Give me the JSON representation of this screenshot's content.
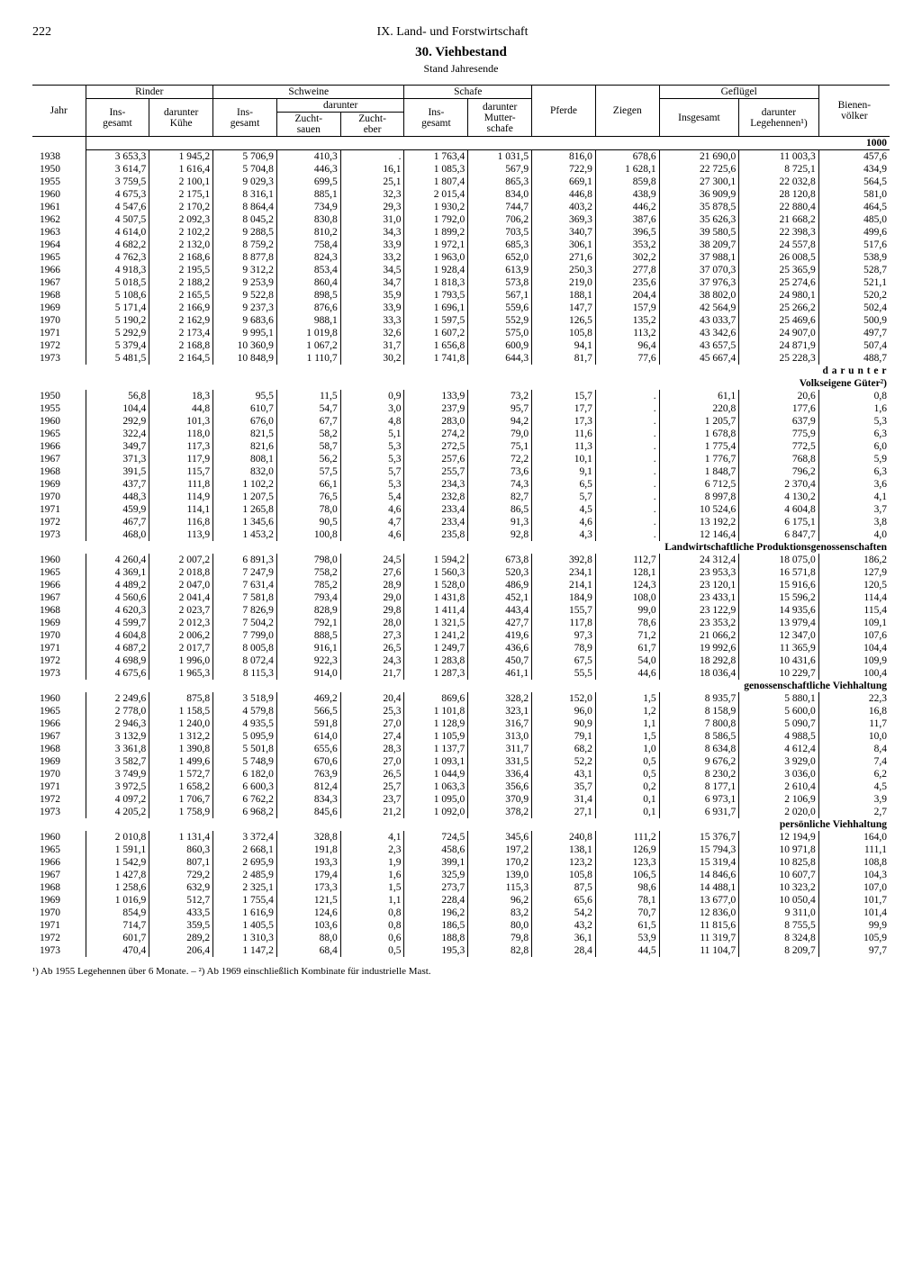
{
  "page_number": "222",
  "chapter": "IX. Land- und Forstwirtschaft",
  "title": "30. Viehbestand",
  "subtitle": "Stand Jahresende",
  "unit_label": "1000",
  "columns": {
    "rinder": "Rinder",
    "schweine": "Schweine",
    "schafe": "Schafe",
    "gefluegel": "Geflügel",
    "jahr": "Jahr",
    "insgesamt": "Ins-\ngesamt",
    "insgesamt_wide": "Insgesamt",
    "darunter": "darunter",
    "kuehe": "darunter\nKühe",
    "zuchtsauen": "Zucht-\nsauen",
    "zuchteber": "Zucht-\neber",
    "mutterschafe": "darunter\nMutter-\nschafe",
    "pferde": "Pferde",
    "ziegen": "Ziegen",
    "legehennen": "darunter\nLegehennen¹)",
    "bienen": "Bienen-\nvölker"
  },
  "sections": [
    {
      "heading": null,
      "subheading": null,
      "rows": [
        [
          "1938",
          "3 653,3",
          "1 945,2",
          "5 706,9",
          "410,3",
          ".",
          "1 763,4",
          "1 031,5",
          "816,0",
          "678,6",
          "21 690,0",
          "11 003,3",
          "457,6"
        ],
        [
          "1950",
          "3 614,7",
          "1 616,4",
          "5 704,8",
          "446,3",
          "16,1",
          "1 085,3",
          "567,9",
          "722,9",
          "1 628,1",
          "22 725,6",
          "8 725,1",
          "434,9"
        ],
        [
          "1955",
          "3 759,5",
          "2 100,1",
          "9 029,3",
          "699,5",
          "25,1",
          "1 807,4",
          "865,3",
          "669,1",
          "859,8",
          "27 300,1",
          "22 032,8",
          "564,5"
        ],
        [
          "1960",
          "4 675,3",
          "2 175,1",
          "8 316,1",
          "885,1",
          "32,3",
          "2 015,4",
          "834,0",
          "446,8",
          "438,9",
          "36 909,9",
          "28 120,8",
          "581,0"
        ],
        [
          "1961",
          "4 547,6",
          "2 170,2",
          "8 864,4",
          "734,9",
          "29,3",
          "1 930,2",
          "744,7",
          "403,2",
          "446,2",
          "35 878,5",
          "22 880,4",
          "464,5"
        ],
        [
          "1962",
          "4 507,5",
          "2 092,3",
          "8 045,2",
          "830,8",
          "31,0",
          "1 792,0",
          "706,2",
          "369,3",
          "387,6",
          "35 626,3",
          "21 668,2",
          "485,0"
        ],
        [
          "1963",
          "4 614,0",
          "2 102,2",
          "9 288,5",
          "810,2",
          "34,3",
          "1 899,2",
          "703,5",
          "340,7",
          "396,5",
          "39 580,5",
          "22 398,3",
          "499,6"
        ],
        [
          "1964",
          "4 682,2",
          "2 132,0",
          "8 759,2",
          "758,4",
          "33,9",
          "1 972,1",
          "685,3",
          "306,1",
          "353,2",
          "38 209,7",
          "24 557,8",
          "517,6"
        ],
        [
          "1965",
          "4 762,3",
          "2 168,6",
          "8 877,8",
          "824,3",
          "33,2",
          "1 963,0",
          "652,0",
          "271,6",
          "302,2",
          "37 988,1",
          "26 008,5",
          "538,9"
        ],
        [
          "1966",
          "4 918,3",
          "2 195,5",
          "9 312,2",
          "853,4",
          "34,5",
          "1 928,4",
          "613,9",
          "250,3",
          "277,8",
          "37 070,3",
          "25 365,9",
          "528,7"
        ],
        [
          "1967",
          "5 018,5",
          "2 188,2",
          "9 253,9",
          "860,4",
          "34,7",
          "1 818,3",
          "573,8",
          "219,0",
          "235,6",
          "37 976,3",
          "25 274,6",
          "521,1"
        ],
        [
          "1968",
          "5 108,6",
          "2 165,5",
          "9 522,8",
          "898,5",
          "35,9",
          "1 793,5",
          "567,1",
          "188,1",
          "204,4",
          "38 802,0",
          "24 980,1",
          "520,2"
        ],
        [
          "1969",
          "5 171,4",
          "2 166,9",
          "9 237,3",
          "876,6",
          "33,9",
          "1 696,1",
          "559,6",
          "147,7",
          "157,9",
          "42 564,9",
          "25 266,2",
          "502,4"
        ],
        [
          "1970",
          "5 190,2",
          "2 162,9",
          "9 683,6",
          "988,1",
          "33,3",
          "1 597,5",
          "552,9",
          "126,5",
          "135,2",
          "43 033,7",
          "25 469,6",
          "500,9"
        ],
        [
          "1971",
          "5 292,9",
          "2 173,4",
          "9 995,1",
          "1 019,8",
          "32,6",
          "1 607,2",
          "575,0",
          "105,8",
          "113,2",
          "43 342,6",
          "24 907,0",
          "497,7"
        ],
        [
          "1972",
          "5 379,4",
          "2 168,8",
          "10 360,9",
          "1 067,2",
          "31,7",
          "1 656,8",
          "600,9",
          "94,1",
          "96,4",
          "43 657,5",
          "24 871,9",
          "507,4"
        ],
        [
          "1973",
          "5 481,5",
          "2 164,5",
          "10 848,9",
          "1 110,7",
          "30,2",
          "1 741,8",
          "644,3",
          "81,7",
          "77,6",
          "45 667,4",
          "25 228,3",
          "488,7"
        ]
      ]
    },
    {
      "heading": "d a r u n t e r",
      "subheading": "Volkseigene Güter²)",
      "rows": [
        [
          "1950",
          "56,8",
          "18,3",
          "95,5",
          "11,5",
          "0,9",
          "133,9",
          "73,2",
          "15,7",
          ".",
          "61,1",
          "20,6",
          "0,8"
        ],
        [
          "1955",
          "104,4",
          "44,8",
          "610,7",
          "54,7",
          "3,0",
          "237,9",
          "95,7",
          "17,7",
          ".",
          "220,8",
          "177,6",
          "1,6"
        ],
        [
          "1960",
          "292,9",
          "101,3",
          "676,0",
          "67,7",
          "4,8",
          "283,0",
          "94,2",
          "17,3",
          ".",
          "1 205,7",
          "637,9",
          "5,3"
        ],
        [
          "1965",
          "322,4",
          "118,0",
          "821,5",
          "58,2",
          "5,1",
          "274,2",
          "79,0",
          "11,6",
          ".",
          "1 678,8",
          "775,9",
          "6,3"
        ],
        [
          "1966",
          "349,7",
          "117,3",
          "821,6",
          "58,7",
          "5,3",
          "272,5",
          "75,1",
          "11,3",
          ".",
          "1 775,4",
          "772,5",
          "6,0"
        ],
        [
          "1967",
          "371,3",
          "117,9",
          "808,1",
          "56,2",
          "5,3",
          "257,6",
          "72,2",
          "10,1",
          ".",
          "1 776,7",
          "768,8",
          "5,9"
        ],
        [
          "1968",
          "391,5",
          "115,7",
          "832,0",
          "57,5",
          "5,7",
          "255,7",
          "73,6",
          "9,1",
          ".",
          "1 848,7",
          "796,2",
          "6,3"
        ],
        [
          "1969",
          "437,7",
          "111,8",
          "1 102,2",
          "66,1",
          "5,3",
          "234,3",
          "74,3",
          "6,5",
          ".",
          "6 712,5",
          "2 370,4",
          "3,6"
        ],
        [
          "1970",
          "448,3",
          "114,9",
          "1 207,5",
          "76,5",
          "5,4",
          "232,8",
          "82,7",
          "5,7",
          ".",
          "8 997,8",
          "4 130,2",
          "4,1"
        ],
        [
          "1971",
          "459,9",
          "114,1",
          "1 265,8",
          "78,0",
          "4,6",
          "233,4",
          "86,5",
          "4,5",
          ".",
          "10 524,6",
          "4 604,8",
          "3,7"
        ],
        [
          "1972",
          "467,7",
          "116,8",
          "1 345,6",
          "90,5",
          "4,7",
          "233,4",
          "91,3",
          "4,6",
          ".",
          "13 192,2",
          "6 175,1",
          "3,8"
        ],
        [
          "1973",
          "468,0",
          "113,9",
          "1 453,2",
          "100,8",
          "4,6",
          "235,8",
          "92,8",
          "4,3",
          ".",
          "12 146,4",
          "6 847,7",
          "4,0"
        ]
      ]
    },
    {
      "heading": null,
      "subheading": "Landwirtschaftliche Produktionsgenossenschaften",
      "rows": [
        [
          "1960",
          "4 260,4",
          "2 007,2",
          "6 891,3",
          "798,0",
          "24,5",
          "1 594,2",
          "673,8",
          "392,8",
          "112,7",
          "24 312,4",
          "18 075,0",
          "186,2"
        ],
        [
          "1965",
          "4 369,1",
          "2 018,8",
          "7 247,9",
          "758,2",
          "27,6",
          "1 560,3",
          "520,3",
          "234,1",
          "128,1",
          "23 953,3",
          "16 571,8",
          "127,9"
        ],
        [
          "1966",
          "4 489,2",
          "2 047,0",
          "7 631,4",
          "785,2",
          "28,9",
          "1 528,0",
          "486,9",
          "214,1",
          "124,3",
          "23 120,1",
          "15 916,6",
          "120,5"
        ],
        [
          "1967",
          "4 560,6",
          "2 041,4",
          "7 581,8",
          "793,4",
          "29,0",
          "1 431,8",
          "452,1",
          "184,9",
          "108,0",
          "23 433,1",
          "15 596,2",
          "114,4"
        ],
        [
          "1968",
          "4 620,3",
          "2 023,7",
          "7 826,9",
          "828,9",
          "29,8",
          "1 411,4",
          "443,4",
          "155,7",
          "99,0",
          "23 122,9",
          "14 935,6",
          "115,4"
        ],
        [
          "1969",
          "4 599,7",
          "2 012,3",
          "7 504,2",
          "792,1",
          "28,0",
          "1 321,5",
          "427,7",
          "117,8",
          "78,6",
          "23 353,2",
          "13 979,4",
          "109,1"
        ],
        [
          "1970",
          "4 604,8",
          "2 006,2",
          "7 799,0",
          "888,5",
          "27,3",
          "1 241,2",
          "419,6",
          "97,3",
          "71,2",
          "21 066,2",
          "12 347,0",
          "107,6"
        ],
        [
          "1971",
          "4 687,2",
          "2 017,7",
          "8 005,8",
          "916,1",
          "26,5",
          "1 249,7",
          "436,6",
          "78,9",
          "61,7",
          "19 992,6",
          "11 365,9",
          "104,4"
        ],
        [
          "1972",
          "4 698,9",
          "1 996,0",
          "8 072,4",
          "922,3",
          "24,3",
          "1 283,8",
          "450,7",
          "67,5",
          "54,0",
          "18 292,8",
          "10 431,6",
          "109,9"
        ],
        [
          "1973",
          "4 675,6",
          "1 965,3",
          "8 115,3",
          "914,0",
          "21,7",
          "1 287,3",
          "461,1",
          "55,5",
          "44,6",
          "18 036,4",
          "10 229,7",
          "100,4"
        ]
      ]
    },
    {
      "heading": null,
      "subheading": "genossenschaftliche Viehhaltung",
      "rows": [
        [
          "1960",
          "2 249,6",
          "875,8",
          "3 518,9",
          "469,2",
          "20,4",
          "869,6",
          "328,2",
          "152,0",
          "1,5",
          "8 935,7",
          "5 880,1",
          "22,3"
        ],
        [
          "1965",
          "2 778,0",
          "1 158,5",
          "4 579,8",
          "566,5",
          "25,3",
          "1 101,8",
          "323,1",
          "96,0",
          "1,2",
          "8 158,9",
          "5 600,0",
          "16,8"
        ],
        [
          "1966",
          "2 946,3",
          "1 240,0",
          "4 935,5",
          "591,8",
          "27,0",
          "1 128,9",
          "316,7",
          "90,9",
          "1,1",
          "7 800,8",
          "5 090,7",
          "11,7"
        ],
        [
          "1967",
          "3 132,9",
          "1 312,2",
          "5 095,9",
          "614,0",
          "27,4",
          "1 105,9",
          "313,0",
          "79,1",
          "1,5",
          "8 586,5",
          "4 988,5",
          "10,0"
        ],
        [
          "1968",
          "3 361,8",
          "1 390,8",
          "5 501,8",
          "655,6",
          "28,3",
          "1 137,7",
          "311,7",
          "68,2",
          "1,0",
          "8 634,8",
          "4 612,4",
          "8,4"
        ],
        [
          "1969",
          "3 582,7",
          "1 499,6",
          "5 748,9",
          "670,6",
          "27,0",
          "1 093,1",
          "331,5",
          "52,2",
          "0,5",
          "9 676,2",
          "3 929,0",
          "7,4"
        ],
        [
          "1970",
          "3 749,9",
          "1 572,7",
          "6 182,0",
          "763,9",
          "26,5",
          "1 044,9",
          "336,4",
          "43,1",
          "0,5",
          "8 230,2",
          "3 036,0",
          "6,2"
        ],
        [
          "1971",
          "3 972,5",
          "1 658,2",
          "6 600,3",
          "812,4",
          "25,7",
          "1 063,3",
          "356,6",
          "35,7",
          "0,2",
          "8 177,1",
          "2 610,4",
          "4,5"
        ],
        [
          "1972",
          "4 097,2",
          "1 706,7",
          "6 762,2",
          "834,3",
          "23,7",
          "1 095,0",
          "370,9",
          "31,4",
          "0,1",
          "6 973,1",
          "2 106,9",
          "3,9"
        ],
        [
          "1973",
          "4 205,2",
          "1 758,9",
          "6 968,2",
          "845,6",
          "21,2",
          "1 092,0",
          "378,2",
          "27,1",
          "0,1",
          "6 931,7",
          "2 020,0",
          "2,7"
        ]
      ]
    },
    {
      "heading": null,
      "subheading": "persönliche Viehhaltung",
      "rows": [
        [
          "1960",
          "2 010,8",
          "1 131,4",
          "3 372,4",
          "328,8",
          "4,1",
          "724,5",
          "345,6",
          "240,8",
          "111,2",
          "15 376,7",
          "12 194,9",
          "164,0"
        ],
        [
          "1965",
          "1 591,1",
          "860,3",
          "2 668,1",
          "191,8",
          "2,3",
          "458,6",
          "197,2",
          "138,1",
          "126,9",
          "15 794,3",
          "10 971,8",
          "111,1"
        ],
        [
          "1966",
          "1 542,9",
          "807,1",
          "2 695,9",
          "193,3",
          "1,9",
          "399,1",
          "170,2",
          "123,2",
          "123,3",
          "15 319,4",
          "10 825,8",
          "108,8"
        ],
        [
          "1967",
          "1 427,8",
          "729,2",
          "2 485,9",
          "179,4",
          "1,6",
          "325,9",
          "139,0",
          "105,8",
          "106,5",
          "14 846,6",
          "10 607,7",
          "104,3"
        ],
        [
          "1968",
          "1 258,6",
          "632,9",
          "2 325,1",
          "173,3",
          "1,5",
          "273,7",
          "115,3",
          "87,5",
          "98,6",
          "14 488,1",
          "10 323,2",
          "107,0"
        ],
        [
          "1969",
          "1 016,9",
          "512,7",
          "1 755,4",
          "121,5",
          "1,1",
          "228,4",
          "96,2",
          "65,6",
          "78,1",
          "13 677,0",
          "10 050,4",
          "101,7"
        ],
        [
          "1970",
          "854,9",
          "433,5",
          "1 616,9",
          "124,6",
          "0,8",
          "196,2",
          "83,2",
          "54,2",
          "70,7",
          "12 836,0",
          "9 311,0",
          "101,4"
        ],
        [
          "1971",
          "714,7",
          "359,5",
          "1 405,5",
          "103,6",
          "0,8",
          "186,5",
          "80,0",
          "43,2",
          "61,5",
          "11 815,6",
          "8 755,5",
          "99,9"
        ],
        [
          "1972",
          "601,7",
          "289,2",
          "1 310,3",
          "88,0",
          "0,6",
          "188,8",
          "79,8",
          "36,1",
          "53,9",
          "11 319,7",
          "8 324,8",
          "105,9"
        ],
        [
          "1973",
          "470,4",
          "206,4",
          "1 147,2",
          "68,4",
          "0,5",
          "195,3",
          "82,8",
          "28,4",
          "44,5",
          "11 104,7",
          "8 209,7",
          "97,7"
        ]
      ]
    }
  ],
  "footnote": "¹) Ab 1955 Legehennen über 6 Monate. – ²) Ab 1969 einschließlich Kombinate für industrielle Mast."
}
